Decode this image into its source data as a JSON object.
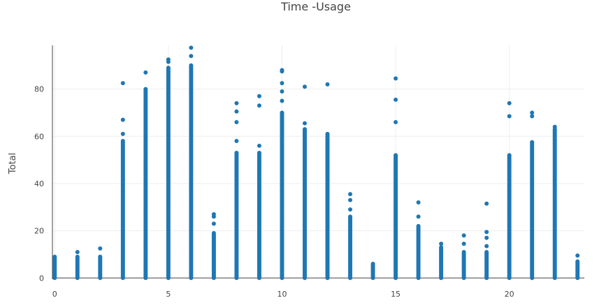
{
  "chart_data": {
    "type": "scatter",
    "title": "Time -Usage",
    "xlabel": "",
    "ylabel": "Total",
    "xlim": [
      -0.1,
      23.3
    ],
    "ylim": [
      -0.5,
      98.5
    ],
    "xticks": [
      0,
      5,
      10,
      15,
      20
    ],
    "yticks": [
      0,
      20,
      40,
      60,
      80
    ],
    "grid": true,
    "marker_color": "#1f77b4",
    "columns": [
      {
        "x": 0,
        "dense_max": 9,
        "outliers": []
      },
      {
        "x": 1,
        "dense_max": 9,
        "outliers": [
          11
        ]
      },
      {
        "x": 2,
        "dense_max": 9,
        "outliers": [
          12.5
        ]
      },
      {
        "x": 3,
        "dense_max": 58,
        "outliers": [
          61,
          67,
          82.5
        ]
      },
      {
        "x": 4,
        "dense_max": 80,
        "outliers": [
          87
        ]
      },
      {
        "x": 5,
        "dense_max": 89,
        "outliers": [
          91.5,
          92.5
        ]
      },
      {
        "x": 6,
        "dense_max": 90,
        "outliers": [
          94,
          97.5
        ]
      },
      {
        "x": 7,
        "dense_max": 19,
        "outliers": [
          23,
          26,
          27
        ]
      },
      {
        "x": 8,
        "dense_max": 53,
        "outliers": [
          58,
          66,
          70.5,
          74
        ]
      },
      {
        "x": 9,
        "dense_max": 53,
        "outliers": [
          56,
          73,
          77
        ]
      },
      {
        "x": 10,
        "dense_max": 70,
        "outliers": [
          75,
          79,
          82.5,
          87.5,
          88
        ]
      },
      {
        "x": 11,
        "dense_max": 63,
        "outliers": [
          65.5,
          81
        ]
      },
      {
        "x": 12,
        "dense_max": 61,
        "outliers": [
          82
        ]
      },
      {
        "x": 13,
        "dense_max": 26,
        "outliers": [
          29,
          33,
          35.5
        ]
      },
      {
        "x": 14,
        "dense_max": 6,
        "outliers": []
      },
      {
        "x": 15,
        "dense_max": 52,
        "outliers": [
          66,
          75.5,
          84.5
        ]
      },
      {
        "x": 16,
        "dense_max": 22,
        "outliers": [
          26,
          32
        ]
      },
      {
        "x": 17,
        "dense_max": 13,
        "outliers": [
          14.5
        ]
      },
      {
        "x": 18,
        "dense_max": 11,
        "outliers": [
          14.5,
          18
        ]
      },
      {
        "x": 19,
        "dense_max": 11,
        "outliers": [
          13.5,
          17,
          19.5,
          31.5
        ]
      },
      {
        "x": 20,
        "dense_max": 52,
        "outliers": [
          68.5,
          74
        ]
      },
      {
        "x": 21,
        "dense_max": 57.5,
        "outliers": [
          68.5,
          70
        ]
      },
      {
        "x": 22,
        "dense_max": 63,
        "outliers": [
          64
        ]
      },
      {
        "x": 23,
        "dense_max": 7,
        "outliers": [
          9.5
        ]
      }
    ]
  }
}
